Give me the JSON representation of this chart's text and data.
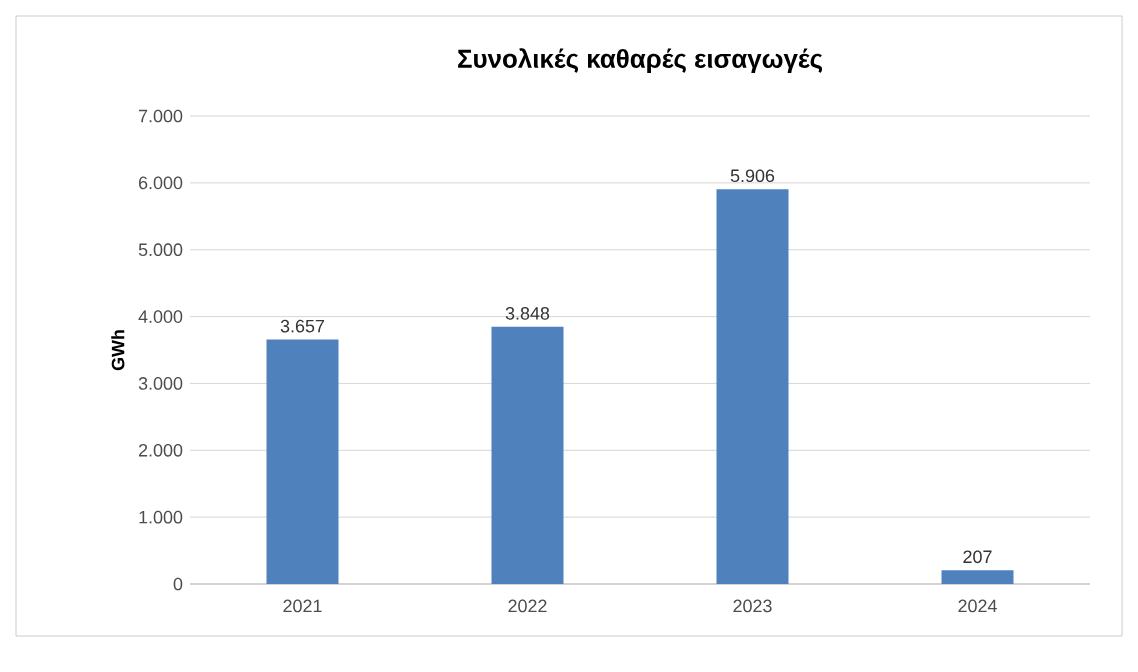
{
  "chart_data": {
    "type": "bar",
    "title": "Συνολικές καθαρές εισαγωγές",
    "ylabel": "GWh",
    "categories": [
      "2021",
      "2022",
      "2023",
      "2024"
    ],
    "values": [
      3657,
      3848,
      5906,
      207
    ],
    "value_labels": [
      "3.657",
      "3.848",
      "5.906",
      "207"
    ],
    "color": "#4f81bd",
    "ylim": [
      0,
      7000
    ],
    "yticks": [
      0,
      {
        "value": 1000,
        "label": "1.000"
      },
      {
        "value": 2000,
        "label": "2.000"
      },
      {
        "value": 3000,
        "label": "3.000"
      },
      {
        "value": 4000,
        "label": "4.000"
      },
      {
        "value": 5000,
        "label": "5.000"
      },
      {
        "value": 6000,
        "label": "6.000"
      },
      {
        "value": 7000,
        "label": "7.000"
      }
    ],
    "grid": "y"
  }
}
